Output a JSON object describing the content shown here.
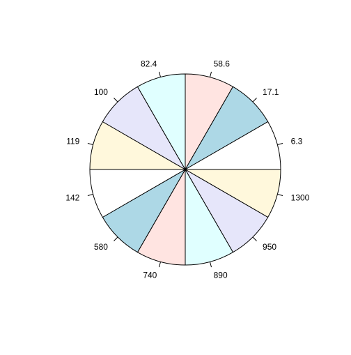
{
  "chart_data": {
    "type": "pie",
    "start": "12 o'clock",
    "direction": "clockwise",
    "slice_labels": [
      "58.6",
      "17.1",
      "6.3",
      "1300",
      "950",
      "890",
      "740",
      "580",
      "142",
      "119",
      "100",
      "82.4"
    ],
    "values": [
      1,
      1,
      1,
      1,
      1,
      1,
      1,
      1,
      1,
      1,
      1,
      1
    ],
    "colors": [
      "#FFE4E1",
      "#ADD8E6",
      "#FFFFFF",
      "#FFF8DC",
      "#E6E6FA",
      "#E0FFFF",
      "#FFE4E1",
      "#ADD8E6",
      "#FFFFFF",
      "#FFF8DC",
      "#E6E6FA",
      "#E0FFFF"
    ],
    "border_color": "#000000",
    "title": "",
    "legend": "none"
  }
}
